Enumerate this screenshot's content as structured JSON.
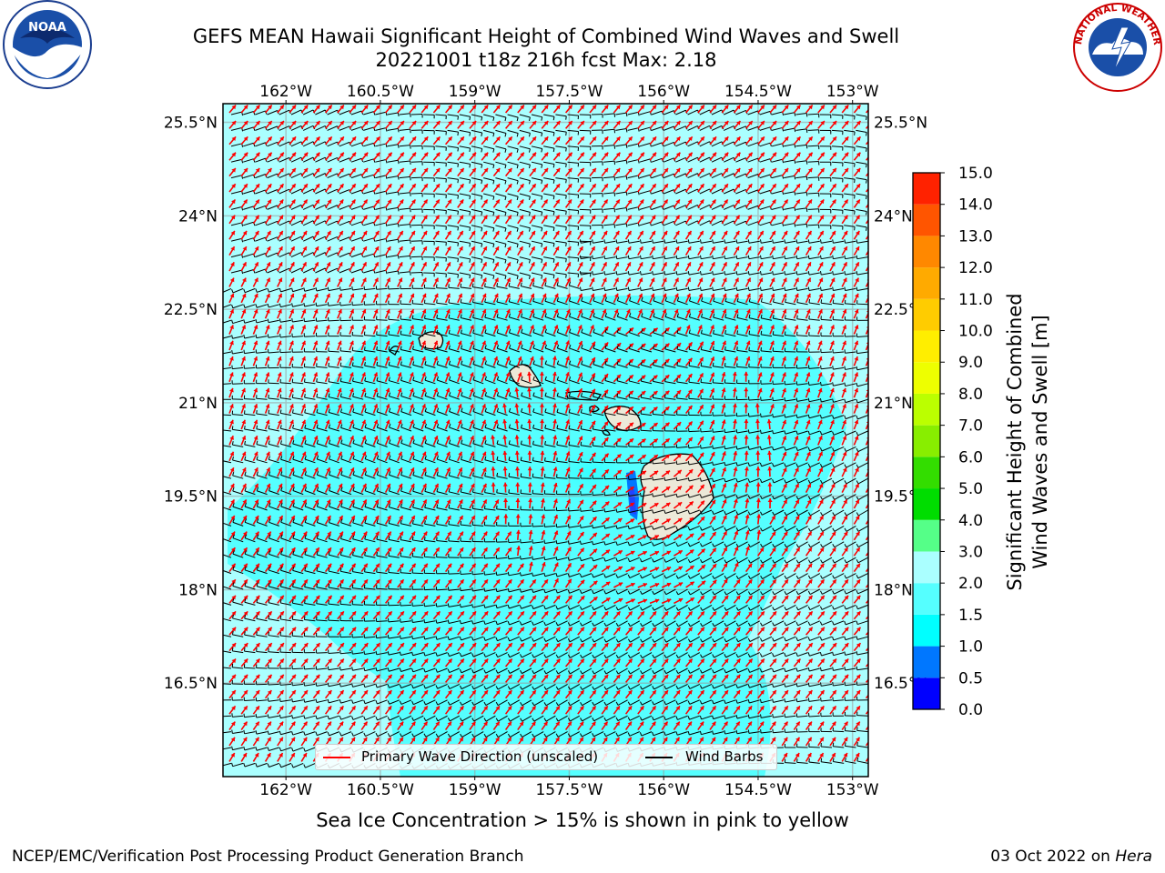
{
  "header": {
    "title_line1": "GEFS MEAN Hawaii Significant Height of Combined Wind Waves and Swell",
    "title_line2": "20221001 t18z 216h fcst   Max: 2.18"
  },
  "logos": {
    "left": {
      "icon": "noaa-logo",
      "text": "NOAA"
    },
    "right": {
      "icon": "nws-logo",
      "text": "NATIONAL WEATHER SERVICE"
    }
  },
  "map": {
    "lon_ticks": [
      "162°W",
      "160.5°W",
      "159°W",
      "157.5°W",
      "156°W",
      "154.5°W",
      "153°W"
    ],
    "lat_ticks": [
      "25.5°N",
      "24°N",
      "22.5°N",
      "21°N",
      "19.5°N",
      "18°N",
      "16.5°N"
    ],
    "lon_range": [
      -163.0,
      -152.75
    ],
    "lat_range": [
      15.0,
      25.8
    ],
    "colors": {
      "land": "#ece9d8",
      "ocean_low": "#aaffff",
      "ocean_mid": "#55ffff",
      "wave_arrow": "#ff0000",
      "barb": "#000000"
    }
  },
  "legend": {
    "wave_label": "Primary Wave Direction (unscaled)",
    "barb_label": "Wind Barbs"
  },
  "colorbar": {
    "title_line1": "Significant Height of Combined",
    "title_line2": "Wind Waves and Swell [m]",
    "levels": [
      "0.0",
      "0.5",
      "1.0",
      "1.5",
      "2.0",
      "3.0",
      "4.0",
      "5.0",
      "6.0",
      "7.0",
      "8.0",
      "9.0",
      "10.0",
      "11.0",
      "12.0",
      "13.0",
      "14.0",
      "15.0"
    ],
    "colors": [
      "#0000ff",
      "#0077ff",
      "#00ffff",
      "#55ffff",
      "#aaffff",
      "#55ff88",
      "#00dd00",
      "#33dd00",
      "#88ee00",
      "#bbff00",
      "#eeff00",
      "#ffee00",
      "#ffcc00",
      "#ffaa00",
      "#ff8800",
      "#ff5500",
      "#ff2200"
    ]
  },
  "notes": {
    "sea_ice": "Sea Ice Concentration > 15% is shown in pink to yellow",
    "footer_left": "NCEP/EMC/Verification Post Processing Product Generation Branch",
    "footer_right_date": "03 Oct 2022 on ",
    "footer_right_machine": "Hera"
  }
}
